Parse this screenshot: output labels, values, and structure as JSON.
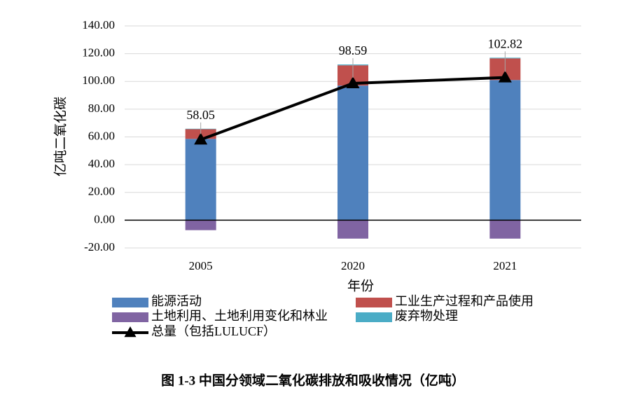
{
  "chart_data": {
    "type": "bar",
    "stacked": true,
    "caption": "图 1-3 中国分领域二氧化碳排放和吸收情况（亿吨）",
    "x_label": "年份",
    "y_label": "亿吨二氧化碳",
    "categories": [
      "2005",
      "2020",
      "2021"
    ],
    "series": [
      {
        "name": "能源活动",
        "color": "#4f81bd",
        "values": [
          58.6,
          97.0,
          101.0
        ]
      },
      {
        "name": "工业生产过程和产品使用",
        "color": "#c0504d",
        "values": [
          7.0,
          14.6,
          15.6
        ]
      },
      {
        "name": "土地利用、土地利用变化和林业",
        "color": "#8064a2",
        "values": [
          -7.2,
          -13.3,
          -13.3
        ]
      },
      {
        "name": "废弃物处理",
        "color": "#4bacc6",
        "values": [
          0.3,
          0.6,
          0.5
        ]
      },
      {
        "name": "总量（包括LULUCF）",
        "color": "#000000",
        "type": "line",
        "marker": "triangle",
        "values": [
          58.05,
          98.59,
          102.82
        ]
      }
    ],
    "ylim": [
      -20,
      140
    ],
    "yticks": [
      {
        "value": -20,
        "label": "-20.00"
      },
      {
        "value": 0,
        "label": "0.00"
      },
      {
        "value": 20,
        "label": "20.00"
      },
      {
        "value": 40,
        "label": "40.00"
      },
      {
        "value": 60,
        "label": "60.00"
      },
      {
        "value": 80,
        "label": "80.00"
      },
      {
        "value": 100,
        "label": "100.00"
      },
      {
        "value": 120,
        "label": "120.00"
      },
      {
        "value": 140,
        "label": "140.00"
      }
    ],
    "grid": true
  }
}
